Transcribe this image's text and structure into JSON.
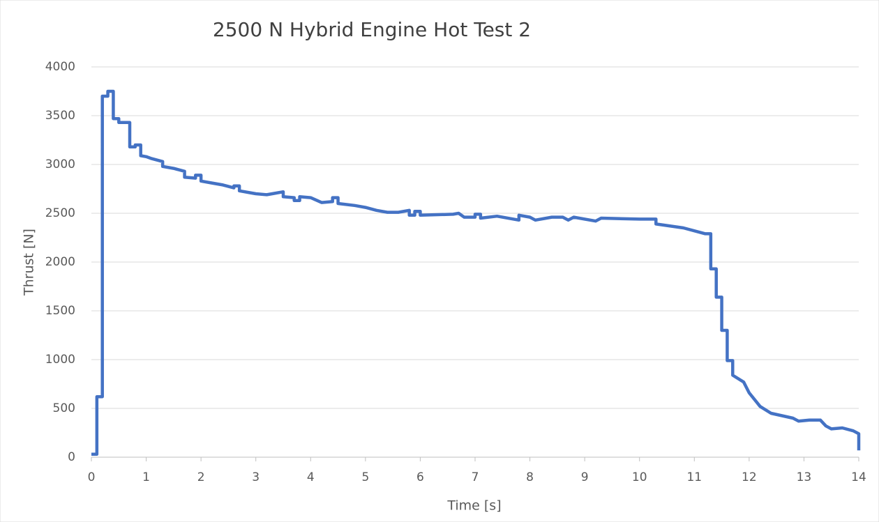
{
  "chart_data": {
    "type": "line",
    "title": "2500 N Hybrid Engine Hot Test 2",
    "x_label": "Time [s]",
    "y_label": "Thrust [N]",
    "x": [
      0,
      0.1,
      0.1,
      0.2,
      0.2,
      0.3,
      0.3,
      0.4,
      0.4,
      0.5,
      0.5,
      0.7,
      0.7,
      0.8,
      0.8,
      0.9,
      0.9,
      1.0,
      1.1,
      1.3,
      1.3,
      1.5,
      1.7,
      1.7,
      1.9,
      1.9,
      2.0,
      2.0,
      2.2,
      2.4,
      2.6,
      2.6,
      2.7,
      2.7,
      2.9,
      3.0,
      3.2,
      3.3,
      3.5,
      3.5,
      3.7,
      3.7,
      3.8,
      3.8,
      4.0,
      4.2,
      4.4,
      4.4,
      4.5,
      4.5,
      4.8,
      5.0,
      5.2,
      5.4,
      5.6,
      5.8,
      5.8,
      5.9,
      5.9,
      6.0,
      6.0,
      6.6,
      6.7,
      6.8,
      7.0,
      7.0,
      7.1,
      7.1,
      7.4,
      7.8,
      7.8,
      8.0,
      8.1,
      8.4,
      8.6,
      8.7,
      8.8,
      9.2,
      9.3,
      10.0,
      10.3,
      10.3,
      10.8,
      11.2,
      11.3,
      11.3,
      11.4,
      11.4,
      11.5,
      11.5,
      11.6,
      11.6,
      11.7,
      11.7,
      11.9,
      12.0,
      12.2,
      12.4,
      12.8,
      12.9,
      13.1,
      13.3,
      13.4,
      13.5,
      13.7,
      13.9,
      14.0,
      14.0
    ],
    "series": [
      {
        "name": "Thrust",
        "color": "#4472c4",
        "values": [
          30,
          30,
          620,
          620,
          3700,
          3700,
          3750,
          3750,
          3470,
          3470,
          3430,
          3430,
          3180,
          3180,
          3200,
          3200,
          3090,
          3080,
          3060,
          3030,
          2980,
          2960,
          2930,
          2870,
          2860,
          2890,
          2890,
          2830,
          2810,
          2790,
          2760,
          2780,
          2780,
          2730,
          2710,
          2700,
          2690,
          2700,
          2720,
          2670,
          2660,
          2630,
          2630,
          2670,
          2660,
          2610,
          2620,
          2660,
          2660,
          2600,
          2580,
          2560,
          2530,
          2510,
          2510,
          2530,
          2480,
          2480,
          2520,
          2520,
          2480,
          2490,
          2500,
          2460,
          2460,
          2490,
          2490,
          2450,
          2470,
          2430,
          2480,
          2460,
          2430,
          2460,
          2460,
          2430,
          2460,
          2420,
          2450,
          2440,
          2440,
          2390,
          2350,
          2290,
          2290,
          1930,
          1930,
          1640,
          1640,
          1300,
          1300,
          990,
          990,
          840,
          770,
          660,
          520,
          450,
          400,
          370,
          380,
          380,
          320,
          290,
          300,
          270,
          240,
          70
        ]
      }
    ],
    "xlim": [
      0,
      14
    ],
    "xticks": [
      0,
      1,
      2,
      3,
      4,
      5,
      6,
      7,
      8,
      9,
      10,
      11,
      12,
      13,
      14
    ],
    "ylim": [
      0,
      4000
    ],
    "yticks": [
      0,
      500,
      1000,
      1500,
      2000,
      2500,
      3000,
      3500,
      4000
    ],
    "grid": true
  }
}
